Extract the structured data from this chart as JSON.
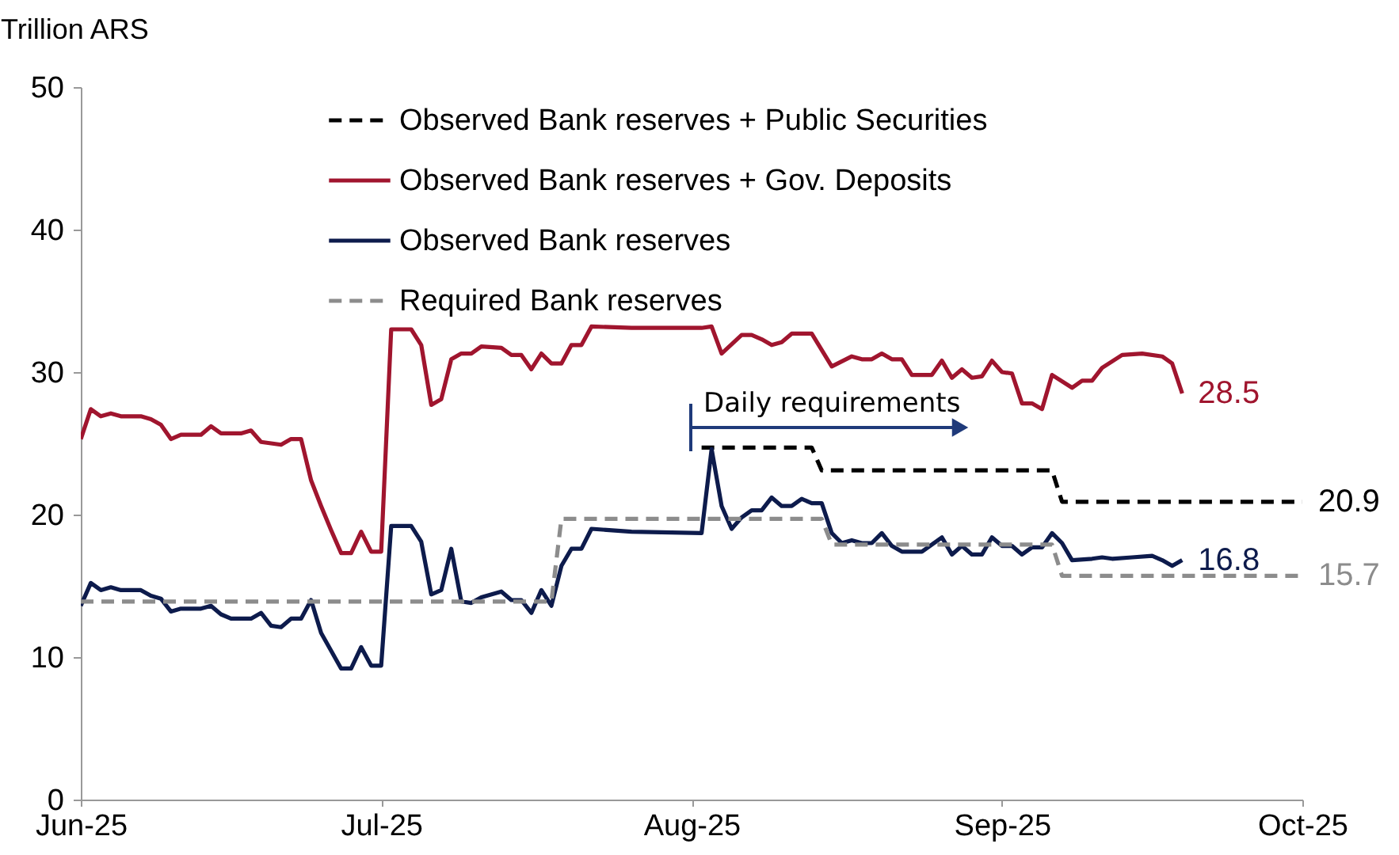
{
  "chart_data": {
    "type": "line",
    "ylabel": "Trillion ARS",
    "xlim": [
      "2025-06-01",
      "2025-10-01"
    ],
    "xticks": [
      {
        "value": "2025-06-01",
        "label": "Jun-25"
      },
      {
        "value": "2025-07-01",
        "label": "Jul-25"
      },
      {
        "value": "2025-08-01",
        "label": "Aug-25"
      },
      {
        "value": "2025-09-01",
        "label": "Sep-25"
      },
      {
        "value": "2025-10-01",
        "label": "Oct-25"
      }
    ],
    "ylim": [
      0,
      50
    ],
    "yticks": [
      0,
      10,
      20,
      30,
      40,
      50
    ],
    "grid": false,
    "legend": "top",
    "annotations": [
      "Daily requirements"
    ],
    "series": [
      {
        "name": "Observed Bank reserves + Public Securities",
        "color": "#000000",
        "line_style": "dashed",
        "x": [
          "2025-08-02",
          "2025-08-13",
          "2025-08-14",
          "2025-09-06",
          "2025-09-07",
          "2025-10-01"
        ],
        "values": [
          24.7,
          24.7,
          23.1,
          23.1,
          20.9,
          20.9
        ],
        "value_labels": [
          null,
          null,
          null,
          null,
          null,
          "20.9"
        ]
      },
      {
        "name": "Observed Bank reserves + Gov. Deposits",
        "color": "#a0152e",
        "line_style": "solid",
        "x": [
          "2025-06-01",
          "2025-06-02",
          "2025-06-03",
          "2025-06-04",
          "2025-06-05",
          "2025-06-07",
          "2025-06-08",
          "2025-06-09",
          "2025-06-10",
          "2025-06-11",
          "2025-06-13",
          "2025-06-14",
          "2025-06-15",
          "2025-06-17",
          "2025-06-18",
          "2025-06-19",
          "2025-06-21",
          "2025-06-22",
          "2025-06-23",
          "2025-06-24",
          "2025-06-25",
          "2025-06-26",
          "2025-06-27",
          "2025-06-28",
          "2025-06-29",
          "2025-06-30",
          "2025-07-01",
          "2025-07-02",
          "2025-07-04",
          "2025-07-05",
          "2025-07-06",
          "2025-07-07",
          "2025-07-08",
          "2025-07-09",
          "2025-07-10",
          "2025-07-11",
          "2025-07-13",
          "2025-07-14",
          "2025-07-15",
          "2025-07-16",
          "2025-07-17",
          "2025-07-18",
          "2025-07-19",
          "2025-07-20",
          "2025-07-21",
          "2025-07-22",
          "2025-07-26",
          "2025-08-02",
          "2025-08-03",
          "2025-08-04",
          "2025-08-06",
          "2025-08-07",
          "2025-08-08",
          "2025-08-09",
          "2025-08-10",
          "2025-08-11",
          "2025-08-13",
          "2025-08-15",
          "2025-08-17",
          "2025-08-18",
          "2025-08-19",
          "2025-08-20",
          "2025-08-21",
          "2025-08-22",
          "2025-08-23",
          "2025-08-25",
          "2025-08-26",
          "2025-08-27",
          "2025-08-28",
          "2025-08-29",
          "2025-08-30",
          "2025-08-31",
          "2025-09-01",
          "2025-09-02",
          "2025-09-03",
          "2025-09-04",
          "2025-09-05",
          "2025-09-06",
          "2025-09-08",
          "2025-09-09",
          "2025-09-10",
          "2025-09-11",
          "2025-09-13",
          "2025-09-15",
          "2025-09-17",
          "2025-09-18",
          "2025-09-19"
        ],
        "values": [
          25.3,
          27.4,
          26.9,
          27.1,
          26.9,
          26.9,
          26.7,
          26.3,
          25.3,
          25.6,
          25.6,
          26.2,
          25.7,
          25.7,
          25.9,
          25.1,
          24.9,
          25.3,
          25.3,
          22.4,
          20.6,
          18.9,
          17.3,
          17.3,
          18.8,
          17.4,
          17.4,
          33.0,
          33.0,
          31.9,
          27.7,
          28.1,
          30.9,
          31.3,
          31.3,
          31.8,
          31.7,
          31.2,
          31.2,
          30.2,
          31.3,
          30.6,
          30.6,
          31.9,
          31.9,
          33.2,
          33.1,
          33.1,
          33.2,
          31.3,
          32.6,
          32.6,
          32.3,
          31.9,
          32.1,
          32.7,
          32.7,
          30.4,
          31.1,
          30.9,
          30.9,
          31.3,
          30.9,
          30.9,
          29.8,
          29.8,
          30.8,
          29.6,
          30.2,
          29.6,
          29.7,
          30.8,
          30.0,
          29.9,
          27.8,
          27.8,
          27.4,
          29.8,
          28.9,
          29.4,
          29.4,
          30.3,
          31.2,
          31.3,
          31.1,
          30.6,
          28.5
        ],
        "value_labels": [
          null,
          null,
          null,
          null,
          null,
          null,
          null,
          null,
          null,
          null,
          null,
          null,
          null,
          null,
          null,
          null,
          null,
          null,
          null,
          null,
          null,
          null,
          null,
          null,
          null,
          null,
          null,
          null,
          null,
          null,
          null,
          null,
          null,
          null,
          null,
          null,
          null,
          null,
          null,
          null,
          null,
          null,
          null,
          null,
          null,
          null,
          null,
          null,
          null,
          null,
          null,
          null,
          null,
          null,
          null,
          null,
          null,
          null,
          null,
          null,
          null,
          null,
          null,
          null,
          null,
          null,
          null,
          null,
          null,
          null,
          null,
          null,
          null,
          null,
          null,
          null,
          null,
          null,
          null,
          null,
          null,
          null,
          null,
          null,
          null,
          null,
          "28.5"
        ]
      },
      {
        "name": "Observed Bank reserves",
        "color": "#0d1b4c",
        "line_style": "solid",
        "x": [
          "2025-06-01",
          "2025-06-02",
          "2025-06-03",
          "2025-06-04",
          "2025-06-05",
          "2025-06-07",
          "2025-06-08",
          "2025-06-09",
          "2025-06-10",
          "2025-06-11",
          "2025-06-13",
          "2025-06-14",
          "2025-06-15",
          "2025-06-16",
          "2025-06-18",
          "2025-06-19",
          "2025-06-20",
          "2025-06-21",
          "2025-06-22",
          "2025-06-23",
          "2025-06-24",
          "2025-06-25",
          "2025-06-27",
          "2025-06-28",
          "2025-06-29",
          "2025-06-30",
          "2025-07-01",
          "2025-07-02",
          "2025-07-04",
          "2025-07-05",
          "2025-07-06",
          "2025-07-07",
          "2025-07-08",
          "2025-07-09",
          "2025-07-10",
          "2025-07-11",
          "2025-07-13",
          "2025-07-14",
          "2025-07-15",
          "2025-07-16",
          "2025-07-17",
          "2025-07-18",
          "2025-07-19",
          "2025-07-20",
          "2025-07-21",
          "2025-07-22",
          "2025-07-26",
          "2025-08-02",
          "2025-08-03",
          "2025-08-04",
          "2025-08-05",
          "2025-08-06",
          "2025-08-07",
          "2025-08-08",
          "2025-08-09",
          "2025-08-10",
          "2025-08-11",
          "2025-08-12",
          "2025-08-13",
          "2025-08-14",
          "2025-08-15",
          "2025-08-16",
          "2025-08-17",
          "2025-08-18",
          "2025-08-19",
          "2025-08-20",
          "2025-08-21",
          "2025-08-22",
          "2025-08-24",
          "2025-08-26",
          "2025-08-27",
          "2025-08-28",
          "2025-08-29",
          "2025-08-30",
          "2025-08-31",
          "2025-09-01",
          "2025-09-02",
          "2025-09-03",
          "2025-09-04",
          "2025-09-05",
          "2025-09-06",
          "2025-09-07",
          "2025-09-08",
          "2025-09-10",
          "2025-09-11",
          "2025-09-12",
          "2025-09-14",
          "2025-09-16",
          "2025-09-17",
          "2025-09-18",
          "2025-09-19"
        ],
        "values": [
          13.6,
          15.2,
          14.7,
          14.9,
          14.7,
          14.7,
          14.3,
          14.1,
          13.2,
          13.4,
          13.4,
          13.6,
          13.0,
          12.7,
          12.7,
          13.1,
          12.2,
          12.1,
          12.7,
          12.7,
          14.0,
          11.7,
          9.2,
          9.2,
          10.7,
          9.4,
          9.4,
          19.2,
          19.2,
          18.1,
          14.4,
          14.7,
          17.6,
          13.9,
          13.8,
          14.2,
          14.6,
          14.0,
          14.0,
          13.1,
          14.7,
          13.6,
          16.4,
          17.6,
          17.6,
          19.0,
          18.8,
          18.7,
          24.6,
          20.6,
          19.0,
          19.8,
          20.3,
          20.3,
          21.2,
          20.6,
          20.6,
          21.1,
          20.8,
          20.8,
          18.7,
          18.0,
          18.2,
          18.0,
          18.0,
          18.7,
          17.8,
          17.4,
          17.4,
          18.4,
          17.2,
          17.8,
          17.2,
          17.2,
          18.4,
          17.8,
          17.8,
          17.2,
          17.7,
          17.7,
          18.7,
          18.0,
          16.8,
          16.9,
          17.0,
          16.9,
          17.0,
          17.1,
          16.8,
          16.4,
          16.8
        ],
        "value_labels": [
          null,
          null,
          null,
          null,
          null,
          null,
          null,
          null,
          null,
          null,
          null,
          null,
          null,
          null,
          null,
          null,
          null,
          null,
          null,
          null,
          null,
          null,
          null,
          null,
          null,
          null,
          null,
          null,
          null,
          null,
          null,
          null,
          null,
          null,
          null,
          null,
          null,
          null,
          null,
          null,
          null,
          null,
          null,
          null,
          null,
          null,
          null,
          null,
          null,
          null,
          null,
          null,
          null,
          null,
          null,
          null,
          null,
          null,
          null,
          null,
          null,
          null,
          null,
          null,
          null,
          null,
          null,
          null,
          null,
          null,
          null,
          null,
          null,
          null,
          null,
          null,
          null,
          null,
          null,
          null,
          null,
          null,
          null,
          null,
          null,
          null,
          null,
          null,
          null,
          null,
          "16.8"
        ]
      },
      {
        "name": "Required Bank reserves",
        "color": "#8c8c8c",
        "line_style": "dashed",
        "x": [
          "2025-06-01",
          "2025-07-18",
          "2025-07-19",
          "2025-08-14",
          "2025-08-15",
          "2025-09-06",
          "2025-09-07",
          "2025-10-01"
        ],
        "values": [
          13.9,
          13.9,
          19.7,
          19.7,
          17.9,
          17.9,
          15.7,
          15.7
        ],
        "value_labels": [
          null,
          null,
          null,
          null,
          null,
          null,
          null,
          "15.7"
        ]
      }
    ]
  }
}
